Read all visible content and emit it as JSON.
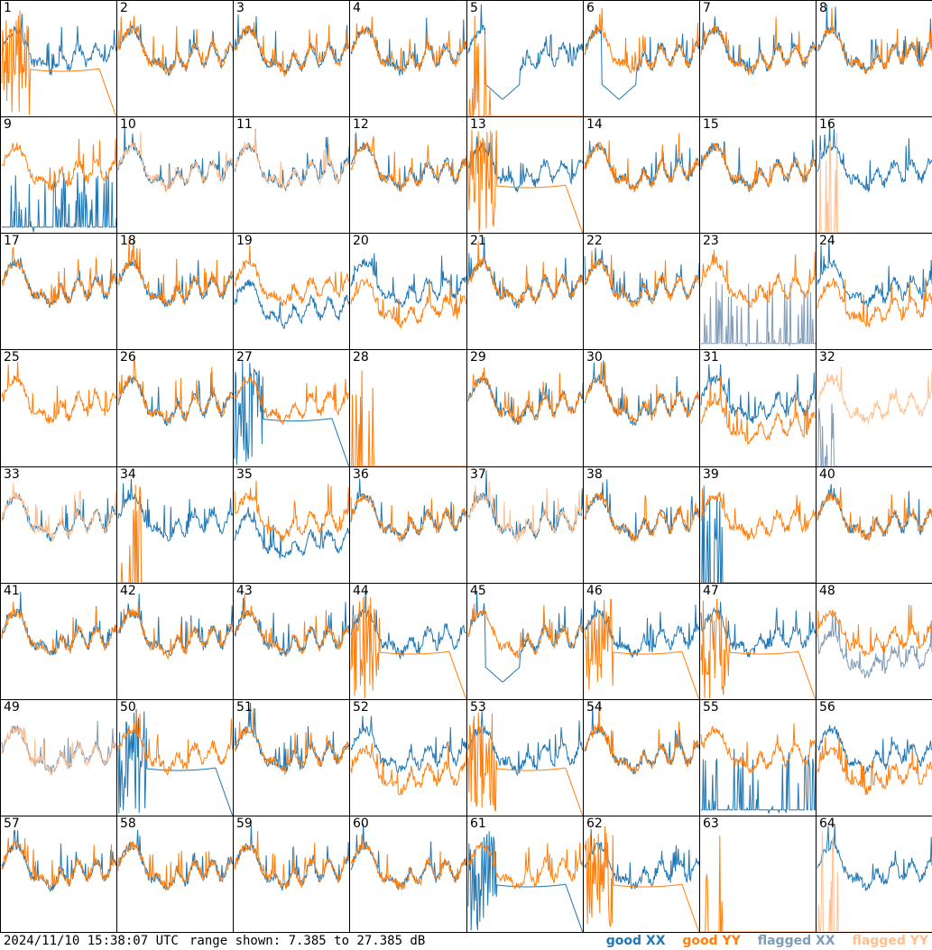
{
  "footer": {
    "timestamp": "2024/11/10 15:38:07 UTC",
    "range": "range shown: 7.385 to 27.385 dB"
  },
  "legend": [
    {
      "label": "good XX",
      "color": "#1f77b4"
    },
    {
      "label": "good YY",
      "color": "#ff7f0e"
    },
    {
      "label": "flagged XX",
      "color": "#7f9bb8"
    },
    {
      "label": "flagged YY",
      "color": "#ffbf8f"
    }
  ],
  "chart_data": {
    "type": "line",
    "y_unit": "dB",
    "ylim": [
      7.385,
      27.385
    ],
    "grid_rows": 8,
    "grid_cols": 8,
    "panels": [
      {
        "id": "1",
        "xx": "good",
        "yy": "good",
        "yy_shape": "droop"
      },
      {
        "id": "2",
        "xx": "good",
        "yy": "good"
      },
      {
        "id": "3",
        "xx": "good",
        "yy": "good"
      },
      {
        "id": "4",
        "xx": "good",
        "yy": "good"
      },
      {
        "id": "5",
        "xx": "good",
        "yy": "good",
        "xx_shape": "dip",
        "yy_shape": "dead"
      },
      {
        "id": "6",
        "xx": "good",
        "yy": "good",
        "xx_shape": "dip"
      },
      {
        "id": "7",
        "xx": "good",
        "yy": "good"
      },
      {
        "id": "8",
        "xx": "good",
        "yy": "good"
      },
      {
        "id": "9",
        "xx": "good",
        "yy": "good",
        "xx_shape": "spikes"
      },
      {
        "id": "10",
        "xx": "good",
        "yy": "flagged"
      },
      {
        "id": "11",
        "xx": "good",
        "yy": "flagged"
      },
      {
        "id": "12",
        "xx": "good",
        "yy": "good"
      },
      {
        "id": "13",
        "xx": "good",
        "yy": "good",
        "yy_shape": "droop"
      },
      {
        "id": "14",
        "xx": "good",
        "yy": "good"
      },
      {
        "id": "15",
        "xx": "good",
        "yy": "good"
      },
      {
        "id": "16",
        "xx": "good",
        "yy": "flagged",
        "yy_shape": "dead"
      },
      {
        "id": "17",
        "xx": "good",
        "yy": "good"
      },
      {
        "id": "18",
        "xx": "good",
        "yy": "good"
      },
      {
        "id": "19",
        "xx": "good",
        "yy": "good",
        "xx_shape": "low"
      },
      {
        "id": "20",
        "xx": "good",
        "yy": "good",
        "yy_shape": "low"
      },
      {
        "id": "21",
        "xx": "good",
        "yy": "good"
      },
      {
        "id": "22",
        "xx": "good",
        "yy": "good"
      },
      {
        "id": "23",
        "xx": "flagged",
        "yy": "good",
        "xx_shape": "spikes"
      },
      {
        "id": "24",
        "xx": "good",
        "yy": "good",
        "yy_shape": "low"
      },
      {
        "id": "25",
        "xx": "none",
        "yy": "good"
      },
      {
        "id": "26",
        "xx": "good",
        "yy": "good"
      },
      {
        "id": "27",
        "xx": "good",
        "yy": "good",
        "xx_shape": "droop"
      },
      {
        "id": "28",
        "xx": "none",
        "yy": "good",
        "yy_shape": "dead"
      },
      {
        "id": "29",
        "xx": "good",
        "yy": "good"
      },
      {
        "id": "30",
        "xx": "good",
        "yy": "good"
      },
      {
        "id": "31",
        "xx": "good",
        "yy": "good",
        "yy_shape": "low"
      },
      {
        "id": "32",
        "xx": "flagged",
        "yy": "flagged",
        "xx_shape": "dead"
      },
      {
        "id": "33",
        "xx": "good",
        "yy": "flagged"
      },
      {
        "id": "34",
        "xx": "good",
        "yy": "good",
        "yy_shape": "dead"
      },
      {
        "id": "35",
        "xx": "good",
        "yy": "good",
        "xx_shape": "low"
      },
      {
        "id": "36",
        "xx": "good",
        "yy": "good"
      },
      {
        "id": "37",
        "xx": "good",
        "yy": "flagged"
      },
      {
        "id": "38",
        "xx": "good",
        "yy": "good"
      },
      {
        "id": "39",
        "xx": "good",
        "yy": "good",
        "xx_shape": "dead"
      },
      {
        "id": "40",
        "xx": "good",
        "yy": "good"
      },
      {
        "id": "41",
        "xx": "good",
        "yy": "good"
      },
      {
        "id": "42",
        "xx": "good",
        "yy": "good"
      },
      {
        "id": "43",
        "xx": "good",
        "yy": "good"
      },
      {
        "id": "44",
        "xx": "good",
        "yy": "good",
        "yy_shape": "droop"
      },
      {
        "id": "45",
        "xx": "good",
        "yy": "good",
        "xx_shape": "dip"
      },
      {
        "id": "46",
        "xx": "good",
        "yy": "good",
        "yy_shape": "droop"
      },
      {
        "id": "47",
        "xx": "good",
        "yy": "good",
        "yy_shape": "droop"
      },
      {
        "id": "48",
        "xx": "flagged",
        "yy": "good",
        "xx_shape": "low"
      },
      {
        "id": "49",
        "xx": "flagged",
        "yy": "flagged"
      },
      {
        "id": "50",
        "xx": "good",
        "yy": "good",
        "xx_shape": "droop"
      },
      {
        "id": "51",
        "xx": "good",
        "yy": "good"
      },
      {
        "id": "52",
        "xx": "good",
        "yy": "good",
        "yy_shape": "low"
      },
      {
        "id": "53",
        "xx": "good",
        "yy": "good",
        "yy_shape": "droop"
      },
      {
        "id": "54",
        "xx": "good",
        "yy": "good"
      },
      {
        "id": "55",
        "xx": "good",
        "yy": "good",
        "xx_shape": "spikes"
      },
      {
        "id": "56",
        "xx": "good",
        "yy": "good",
        "yy_shape": "low"
      },
      {
        "id": "57",
        "xx": "good",
        "yy": "good"
      },
      {
        "id": "58",
        "xx": "good",
        "yy": "good"
      },
      {
        "id": "59",
        "xx": "good",
        "yy": "good"
      },
      {
        "id": "60",
        "xx": "good",
        "yy": "good"
      },
      {
        "id": "61",
        "xx": "good",
        "yy": "good",
        "xx_shape": "droop"
      },
      {
        "id": "62",
        "xx": "good",
        "yy": "good",
        "yy_shape": "droop"
      },
      {
        "id": "63",
        "xx": "none",
        "yy": "good",
        "yy_shape": "dead"
      },
      {
        "id": "64",
        "xx": "good",
        "yy": "flagged",
        "yy_shape": "dead"
      }
    ]
  }
}
